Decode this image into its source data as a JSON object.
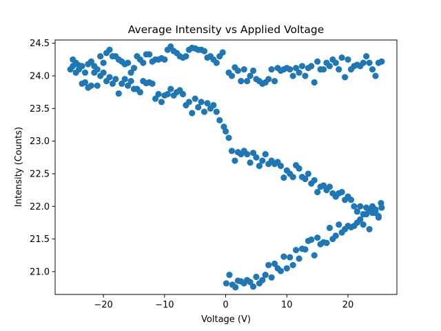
{
  "chart_data": {
    "type": "scatter",
    "title": "Average Intensity vs Applied Voltage",
    "xlabel": "Voltage (V)",
    "ylabel": "Intensity (Counts)",
    "xlim": [
      -27.9,
      28.0
    ],
    "ylim": [
      20.65,
      24.55
    ],
    "xticks": [
      -20,
      -10,
      0,
      10,
      20
    ],
    "xtick_labels": [
      "−20",
      "−10",
      "0",
      "10",
      "20"
    ],
    "yticks": [
      21.0,
      21.5,
      22.0,
      22.5,
      23.0,
      23.5,
      24.0,
      24.5
    ],
    "ytick_labels": [
      "21.0",
      "21.5",
      "22.0",
      "22.5",
      "23.0",
      "23.5",
      "24.0",
      "24.5"
    ],
    "grid": false,
    "legend": "none",
    "series": [
      {
        "color": "#1f77b4",
        "marker": "circle",
        "x": [
          0.1,
          0.6,
          1.1,
          1.6,
          2.0,
          2.5,
          3.0,
          3.5,
          4.0,
          4.5,
          5.0,
          5.5,
          6.0,
          6.5,
          7.0,
          7.5,
          8.0,
          8.5,
          9.0,
          9.5,
          10.0,
          10.5,
          11.0,
          11.5,
          12.0,
          12.5,
          13.0,
          13.5,
          14.0,
          14.5,
          15.0,
          15.5,
          16.0,
          16.5,
          17.0,
          17.5,
          18.0,
          18.5,
          19.0,
          19.5,
          20.0,
          20.5,
          21.0,
          21.5,
          22.0,
          22.5,
          23.0,
          23.5,
          24.0,
          24.5,
          25.0,
          25.5,
          25.4,
          25.0,
          24.5,
          24.0,
          23.5,
          23.0,
          22.5,
          22.0,
          21.5,
          21.0,
          20.5,
          20.0,
          19.5,
          19.0,
          18.5,
          18.0,
          17.5,
          17.0,
          16.5,
          16.0,
          15.5,
          15.0,
          14.5,
          14.0,
          13.5,
          13.0,
          12.5,
          12.0,
          11.5,
          11.0,
          10.5,
          10.0,
          9.5,
          9.0,
          8.5,
          8.0,
          7.5,
          7.0,
          6.5,
          6.0,
          5.5,
          5.0,
          4.5,
          4.0,
          3.5,
          3.0,
          2.5,
          2.0,
          1.5,
          1.0,
          0.5,
          0.0,
          -0.3,
          -1.0,
          -1.5,
          -2.0,
          -2.5,
          -3.0,
          -3.5,
          -4.0,
          -4.5,
          -5.0,
          -5.5,
          -6.0,
          -6.5,
          -7.0,
          -7.5,
          -8.0,
          -8.5,
          -9.0,
          -9.5,
          -10.0,
          -10.5,
          -11.0,
          -11.5,
          -12.0,
          -12.5,
          -13.0,
          -13.5,
          -14.0,
          -14.5,
          -15.0,
          -15.5,
          -16.0,
          -16.5,
          -17.0,
          -17.5,
          -18.0,
          -18.5,
          -19.0,
          -19.5,
          -20.0,
          -20.5,
          -21.0,
          -21.5,
          -22.0,
          -22.5,
          -23.0,
          -23.5,
          -24.0,
          -24.5,
          -25.0,
          -25.4,
          -25.0,
          -24.5,
          -24.0,
          -23.5,
          -23.0,
          -22.5,
          -22.0,
          -21.5,
          -21.0,
          -20.5,
          -20.0,
          -19.5,
          -19.0,
          -18.5,
          -18.0,
          -17.5,
          -17.0,
          -16.5,
          -16.0,
          -15.5,
          -15.0,
          -14.5,
          -14.0,
          -13.5,
          -13.0,
          -12.5,
          -12.0,
          -11.5,
          -11.0,
          -10.5,
          -10.0,
          -9.5,
          -9.0,
          -8.5,
          -8.0,
          -7.5,
          -7.0,
          -6.5,
          -6.0,
          -5.5,
          -5.0,
          -4.5,
          -4.0,
          -3.5,
          -3.0,
          -2.5,
          -2.0,
          -1.5,
          -1.0,
          -0.5,
          0.5,
          1.0,
          1.5,
          2.0,
          2.5,
          3.0,
          3.5,
          4.0,
          4.5,
          5.0,
          5.5,
          6.0,
          6.5,
          7.0,
          7.5,
          8.0,
          8.5,
          9.0,
          9.5,
          10.0,
          10.5,
          11.0,
          11.5,
          12.0,
          12.5,
          13.0,
          13.5,
          14.0,
          14.5,
          15.0,
          15.5,
          16.0,
          16.5,
          17.0,
          17.5,
          18.0,
          18.5,
          19.0,
          19.5,
          20.0,
          20.5,
          21.0,
          21.5,
          22.0,
          22.5,
          23.0,
          23.5,
          24.0,
          24.5,
          25.0,
          25.5
        ],
        "y": [
          20.82,
          20.95,
          20.8,
          20.76,
          20.86,
          20.85,
          20.82,
          20.87,
          20.84,
          20.77,
          20.92,
          20.82,
          20.87,
          20.95,
          21.1,
          20.91,
          21.12,
          21.05,
          21.01,
          21.23,
          21.05,
          21.22,
          21.1,
          21.33,
          21.2,
          21.35,
          21.34,
          21.47,
          21.49,
          21.25,
          21.52,
          21.42,
          21.45,
          21.44,
          21.67,
          21.5,
          21.55,
          21.72,
          21.6,
          21.65,
          21.7,
          21.68,
          21.7,
          21.75,
          21.8,
          21.72,
          21.88,
          21.65,
          21.9,
          21.95,
          21.85,
          21.98,
          22.05,
          21.83,
          21.9,
          22.0,
          21.95,
          21.98,
          21.88,
          22.0,
          21.92,
          22.0,
          22.1,
          22.15,
          22.1,
          22.22,
          22.2,
          22.15,
          22.2,
          22.3,
          22.25,
          22.32,
          22.3,
          22.22,
          22.4,
          22.35,
          22.5,
          22.42,
          22.45,
          22.58,
          22.63,
          22.45,
          22.5,
          22.55,
          22.44,
          22.62,
          22.68,
          22.65,
          22.7,
          22.65,
          22.8,
          22.7,
          22.62,
          22.75,
          22.82,
          22.67,
          22.8,
          22.85,
          22.8,
          22.83,
          22.7,
          22.85,
          23.05,
          23.15,
          23.22,
          23.32,
          23.45,
          23.55,
          23.5,
          23.58,
          23.45,
          23.6,
          23.52,
          23.65,
          23.43,
          23.6,
          23.55,
          23.72,
          23.78,
          23.75,
          23.7,
          23.8,
          23.72,
          23.7,
          23.6,
          23.72,
          23.65,
          23.88,
          23.9,
          23.89,
          23.92,
          23.75,
          23.8,
          23.8,
          23.92,
          23.85,
          23.95,
          23.88,
          23.73,
          23.95,
          23.88,
          23.98,
          23.92,
          24.05,
          24.0,
          23.85,
          24.15,
          23.85,
          23.82,
          23.9,
          23.88,
          24.1,
          24.05,
          24.15,
          24.1,
          24.25,
          24.2,
          24.16,
          24.15,
          24.05,
          24.18,
          24.22,
          24.05,
          24.1,
          24.3,
          24.2,
          24.35,
          24.4,
          24.3,
          24.3,
          24.25,
          24.22,
          24.18,
          24.2,
          24.05,
          24.12,
          24.3,
          24.25,
          24.2,
          24.33,
          24.33,
          24.22,
          24.25,
          24.25,
          24.27,
          24.25,
          24.4,
          24.45,
          24.38,
          24.35,
          24.3,
          24.28,
          24.3,
          24.4,
          24.43,
          24.42,
          24.4,
          24.4,
          24.38,
          24.28,
          24.3,
          24.25,
          24.2,
          24.3,
          24.36,
          24.05,
          24.0,
          24.13,
          24.08,
          23.92,
          24.1,
          23.92,
          24.0,
          24.08,
          23.95,
          23.92,
          23.88,
          23.9,
          23.95,
          24.1,
          23.92,
          24.12,
          24.08,
          24.1,
          24.12,
          24.1,
          24.0,
          24.12,
          24.05,
          24.15,
          24.0,
          24.12,
          24.15,
          23.9,
          24.22,
          24.1,
          24.1,
          24.2,
          24.15,
          24.25,
          24.2,
          24.1,
          24.28,
          23.98,
          24.25,
          24.1,
          24.15,
          24.17,
          24.15,
          24.2,
          24.3,
          24.2,
          24.1,
          24.0,
          24.2,
          24.22
        ]
      }
    ]
  }
}
